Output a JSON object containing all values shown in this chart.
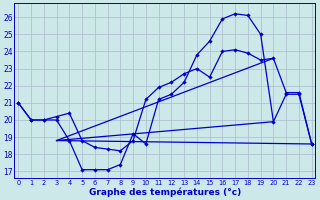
{
  "title": "Graphe des températures (°c)",
  "bg_color": "#cce8e8",
  "grid_color": "#aabbcc",
  "line_color": "#0000cc",
  "xlim": [
    -0.3,
    23.3
  ],
  "ylim": [
    16.6,
    26.8
  ],
  "xticks": [
    0,
    1,
    2,
    3,
    4,
    5,
    6,
    7,
    8,
    9,
    10,
    11,
    12,
    13,
    14,
    15,
    16,
    17,
    18,
    19,
    20,
    21,
    22,
    23
  ],
  "yticks": [
    17,
    18,
    19,
    20,
    21,
    22,
    23,
    24,
    25,
    26
  ],
  "curve1_x": [
    0,
    1,
    2,
    3,
    4,
    5,
    6,
    7,
    8,
    9,
    10,
    11,
    12,
    13,
    14,
    15,
    16,
    17,
    18,
    19,
    20,
    21,
    22,
    23
  ],
  "curve1_y": [
    21.0,
    20.0,
    20.0,
    20.0,
    18.8,
    17.1,
    17.1,
    17.1,
    17.4,
    19.2,
    18.6,
    21.2,
    21.5,
    22.2,
    23.8,
    24.6,
    25.9,
    26.2,
    26.1,
    25.0,
    19.9,
    21.5,
    21.5,
    18.6
  ],
  "curve2_x": [
    0,
    1,
    2,
    3,
    4,
    5,
    6,
    7,
    8,
    9,
    10,
    11,
    12,
    13,
    14,
    15,
    16,
    17,
    18,
    19,
    20,
    21,
    22,
    23
  ],
  "curve2_y": [
    21.0,
    20.0,
    20.0,
    20.2,
    20.4,
    18.8,
    18.4,
    18.3,
    18.2,
    18.8,
    21.2,
    21.9,
    22.2,
    22.7,
    23.0,
    22.5,
    24.0,
    24.1,
    23.9,
    23.5,
    23.6,
    21.6,
    21.6,
    18.6
  ],
  "line3_x": [
    3,
    23
  ],
  "line3_y": [
    18.8,
    18.6
  ],
  "line4_x": [
    3,
    20
  ],
  "line4_y": [
    18.8,
    23.6
  ],
  "line5_x": [
    3,
    20
  ],
  "line5_y": [
    18.8,
    19.9
  ]
}
